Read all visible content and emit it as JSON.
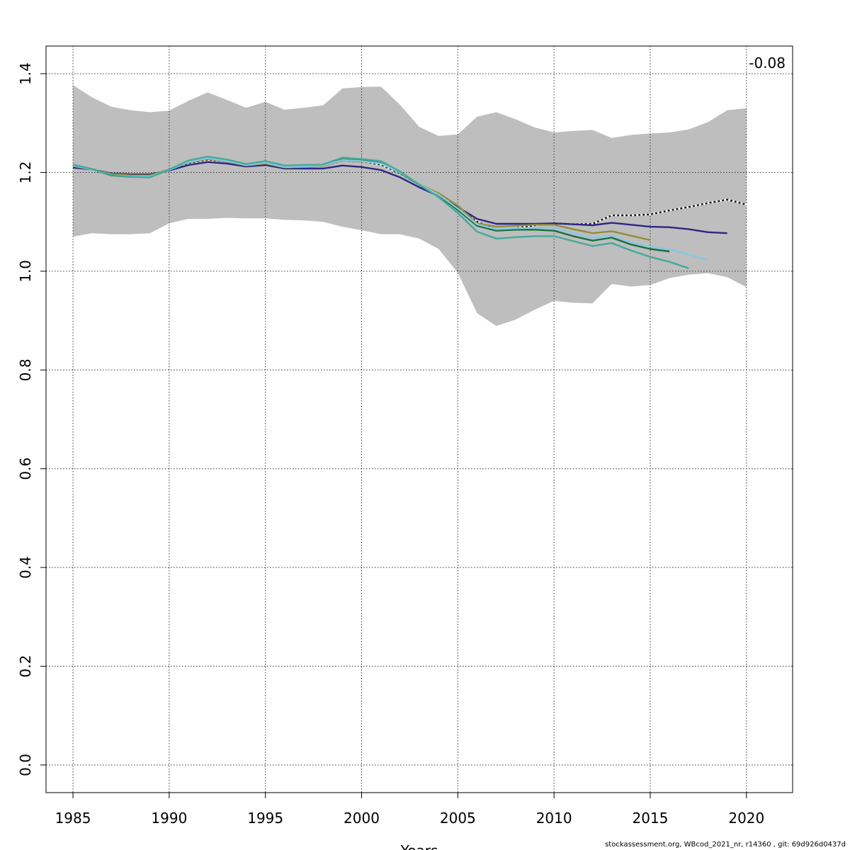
{
  "chart_data": {
    "type": "line",
    "title": "",
    "xlabel": "Years",
    "ylabel": "",
    "xlim": [
      1983.6,
      2022.4
    ],
    "ylim": [
      -0.056,
      1.456
    ],
    "x_ticks": [
      1985,
      1990,
      1995,
      2000,
      2005,
      2010,
      2015,
      2020
    ],
    "y_ticks": [
      0.0,
      0.2,
      0.4,
      0.6,
      0.8,
      1.0,
      1.2,
      1.4
    ],
    "y_tick_labels": [
      "0.0",
      "0.2",
      "0.4",
      "0.6",
      "0.8",
      "1.0",
      "1.2",
      "1.4"
    ],
    "grid": true,
    "annotation": "-0.08",
    "band": {
      "x": [
        1985,
        1986,
        1987,
        1988,
        1989,
        1990,
        1991,
        1992,
        1993,
        1994,
        1995,
        1996,
        1997,
        1998,
        1999,
        2000,
        2001,
        2002,
        2003,
        2004,
        2005,
        2006,
        2007,
        2008,
        2009,
        2010,
        2011,
        2012,
        2013,
        2014,
        2015,
        2016,
        2017,
        2018,
        2019,
        2020
      ],
      "upper": [
        1.377,
        1.352,
        1.333,
        1.326,
        1.322,
        1.325,
        1.345,
        1.362,
        1.347,
        1.331,
        1.343,
        1.327,
        1.331,
        1.336,
        1.37,
        1.373,
        1.374,
        1.337,
        1.292,
        1.274,
        1.277,
        1.313,
        1.322,
        1.308,
        1.291,
        1.281,
        1.284,
        1.286,
        1.27,
        1.276,
        1.279,
        1.281,
        1.287,
        1.302,
        1.326,
        1.33
      ],
      "lower": [
        1.07,
        1.077,
        1.075,
        1.075,
        1.077,
        1.097,
        1.106,
        1.106,
        1.108,
        1.107,
        1.107,
        1.104,
        1.103,
        1.1,
        1.09,
        1.083,
        1.075,
        1.075,
        1.066,
        1.045,
        0.997,
        0.915,
        0.889,
        0.902,
        0.922,
        0.94,
        0.936,
        0.935,
        0.974,
        0.969,
        0.972,
        0.986,
        0.993,
        0.996,
        0.988,
        0.968
      ]
    },
    "series": [
      {
        "color": "#1a1a1a",
        "dashed": true,
        "x": [
          1985,
          1986,
          1987,
          1988,
          1989,
          1990,
          1991,
          1992,
          1993,
          1994,
          1995,
          1996,
          1997,
          1998,
          1999,
          2000,
          2001,
          2002,
          2003,
          2004,
          2005,
          2006,
          2007,
          2008,
          2009,
          2010,
          2011,
          2012,
          2013,
          2014,
          2015,
          2016,
          2017,
          2018,
          2019,
          2020
        ],
        "values": [
          1.213,
          1.207,
          1.196,
          1.193,
          1.193,
          1.205,
          1.219,
          1.226,
          1.222,
          1.214,
          1.219,
          1.211,
          1.212,
          1.213,
          1.224,
          1.222,
          1.216,
          1.198,
          1.176,
          1.156,
          1.13,
          1.1,
          1.084,
          1.087,
          1.093,
          1.097,
          1.095,
          1.096,
          1.113,
          1.113,
          1.115,
          1.123,
          1.13,
          1.138,
          1.145,
          1.135
        ]
      },
      {
        "color": "#2e2585",
        "x": [
          1985,
          1986,
          1987,
          1988,
          1989,
          1990,
          1991,
          1992,
          1993,
          1994,
          1995,
          1996,
          1997,
          1998,
          1999,
          2000,
          2001,
          2002,
          2003,
          2004,
          2005,
          2006,
          2007,
          2008,
          2009,
          2010,
          2011,
          2012,
          2013,
          2014,
          2015,
          2016,
          2017,
          2018,
          2019
        ],
        "values": [
          1.21,
          1.206,
          1.198,
          1.196,
          1.196,
          1.204,
          1.215,
          1.221,
          1.218,
          1.212,
          1.215,
          1.208,
          1.208,
          1.208,
          1.214,
          1.211,
          1.205,
          1.19,
          1.17,
          1.152,
          1.13,
          1.106,
          1.096,
          1.096,
          1.096,
          1.097,
          1.095,
          1.093,
          1.098,
          1.094,
          1.09,
          1.089,
          1.085,
          1.079,
          1.077
        ]
      },
      {
        "color": "#948c3a",
        "x": [
          1985,
          1986,
          1987,
          1988,
          1989,
          1990,
          1991,
          1992,
          1993,
          1994,
          1995,
          1996,
          1997,
          1998,
          1999,
          2000,
          2001,
          2002,
          2003,
          2004,
          2005,
          2006,
          2007,
          2008,
          2009,
          2010,
          2011,
          2012,
          2013,
          2014,
          2015
        ],
        "values": [
          1.213,
          1.206,
          1.197,
          1.194,
          1.194,
          1.206,
          1.22,
          1.227,
          1.222,
          1.214,
          1.218,
          1.21,
          1.211,
          1.213,
          1.224,
          1.222,
          1.218,
          1.2,
          1.176,
          1.158,
          1.133,
          1.097,
          1.09,
          1.092,
          1.094,
          1.094,
          1.085,
          1.077,
          1.081,
          1.072,
          1.063
        ]
      },
      {
        "color": "#1b6f3b",
        "x": [
          1985,
          1986,
          1987,
          1988,
          1989,
          1990,
          1991,
          1992,
          1993,
          1994,
          1995,
          1996,
          1997,
          1998,
          1999,
          2000,
          2001,
          2002,
          2003,
          2004,
          2005,
          2006,
          2007,
          2008,
          2009,
          2010,
          2011,
          2012,
          2013,
          2014,
          2015,
          2016
        ],
        "values": [
          1.214,
          1.206,
          1.194,
          1.191,
          1.191,
          1.205,
          1.221,
          1.23,
          1.224,
          1.215,
          1.221,
          1.212,
          1.213,
          1.215,
          1.226,
          1.224,
          1.219,
          1.199,
          1.175,
          1.153,
          1.124,
          1.092,
          1.082,
          1.084,
          1.084,
          1.082,
          1.071,
          1.062,
          1.068,
          1.054,
          1.045,
          1.04
        ]
      },
      {
        "color": "#87c8e6",
        "x": [
          1985,
          1986,
          1987,
          1988,
          1989,
          1990,
          1991,
          1992,
          1993,
          1994,
          1995,
          1996,
          1997,
          1998,
          1999,
          2000,
          2001,
          2002,
          2003,
          2004,
          2005,
          2006,
          2007,
          2008,
          2009,
          2010,
          2011,
          2012,
          2013,
          2014,
          2015,
          2016,
          2017,
          2018
        ],
        "values": [
          1.214,
          1.206,
          1.195,
          1.192,
          1.192,
          1.205,
          1.221,
          1.229,
          1.223,
          1.215,
          1.22,
          1.211,
          1.212,
          1.214,
          1.225,
          1.223,
          1.218,
          1.2,
          1.176,
          1.155,
          1.127,
          1.095,
          1.085,
          1.087,
          1.088,
          1.088,
          1.077,
          1.068,
          1.072,
          1.058,
          1.05,
          1.044,
          1.034,
          1.023
        ]
      },
      {
        "color": "#44aa99",
        "x": [
          1985,
          1986,
          1987,
          1988,
          1989,
          1990,
          1991,
          1992,
          1993,
          1994,
          1995,
          1996,
          1997,
          1998,
          1999,
          2000,
          2001,
          2002,
          2003,
          2004,
          2005,
          2006,
          2007,
          2008,
          2009,
          2010,
          2011,
          2012,
          2013,
          2014,
          2015,
          2016,
          2017
        ],
        "values": [
          1.216,
          1.207,
          1.195,
          1.191,
          1.19,
          1.206,
          1.224,
          1.232,
          1.226,
          1.217,
          1.223,
          1.214,
          1.215,
          1.216,
          1.23,
          1.227,
          1.223,
          1.202,
          1.175,
          1.15,
          1.118,
          1.08,
          1.066,
          1.069,
          1.071,
          1.071,
          1.061,
          1.051,
          1.057,
          1.042,
          1.029,
          1.019,
          1.006
        ]
      }
    ]
  },
  "footer": "stockassessment.org, WBcod_2021_nr, r14360 , git: 69d926d0437d"
}
